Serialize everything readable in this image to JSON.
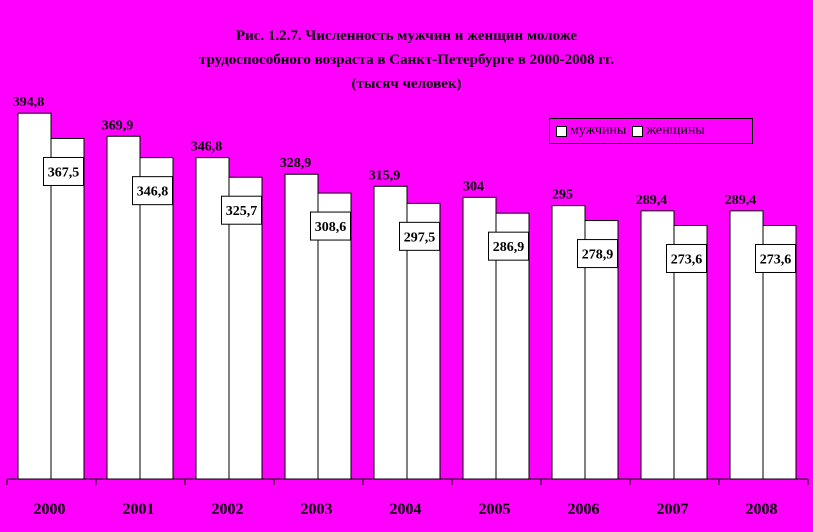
{
  "chart_data": {
    "type": "bar",
    "title_lines": [
      "Рис. 1.2.7. Численность мужчин и женщин моложе",
      "трудоспособного возраста в Санкт-Петербурге в 2000-2008 гг.",
      "(тысяч человек)"
    ],
    "categories": [
      "2000",
      "2001",
      "2002",
      "2003",
      "2004",
      "2005",
      "2006",
      "2007",
      "2008"
    ],
    "series": [
      {
        "name": "мужчины",
        "color": "#ffffff",
        "values": [
          394.8,
          369.9,
          346.8,
          328.9,
          315.9,
          304,
          295,
          289.4,
          289.4
        ],
        "labels": [
          "394,8",
          "369,9",
          "346,8",
          "328,9",
          "315,9",
          "304",
          "295",
          "289,4",
          "289,4"
        ]
      },
      {
        "name": "женщины",
        "color": "#ffffff",
        "values": [
          367.5,
          346.8,
          325.7,
          308.6,
          297.5,
          286.9,
          278.9,
          273.6,
          273.6
        ],
        "labels": [
          "367,5",
          "346,8",
          "325,7",
          "308,6",
          "297,5",
          "286,9",
          "278,9",
          "273,6",
          "273,6"
        ]
      }
    ],
    "legend_position": "top-right",
    "grid": false,
    "background_color": "#ff00ff"
  }
}
